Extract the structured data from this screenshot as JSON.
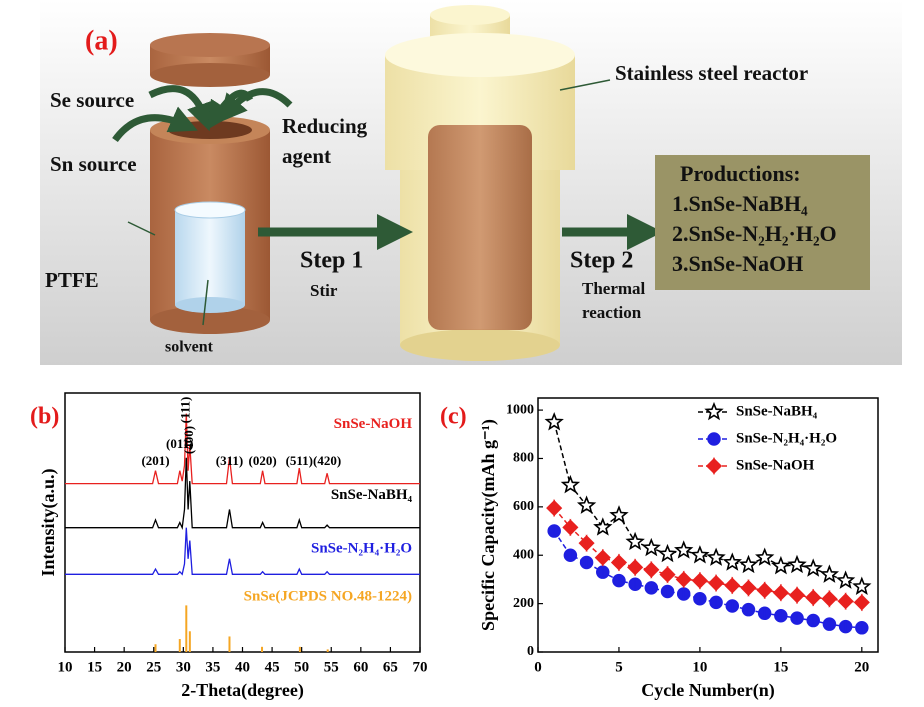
{
  "diagram": {
    "panel_label": "(a)",
    "reactor": "Stainless steel reactor",
    "se_source": "Se source",
    "reducing": [
      "Reducing",
      "agent"
    ],
    "sn_source": "Sn source",
    "ptfe": "PTFE",
    "solvent": "solvent",
    "step1": "Step 1",
    "step1_sub": "Stir",
    "step2": "Step 2",
    "step2_sub": [
      "Thermal",
      "reaction"
    ],
    "products_title": "Productions:",
    "products": [
      "1.SnSe-NaBH₄",
      "2.SnSe-N₂H₂·H₂O",
      "3.SnSe-NaOH"
    ]
  },
  "chart_data": [
    {
      "type": "line",
      "panel_label": "(b)",
      "x_label": "2-Theta(degree)",
      "y_label": "Intensity(a.u.)",
      "xlim": [
        10,
        70
      ],
      "xticks": [
        10,
        15,
        20,
        25,
        30,
        35,
        40,
        45,
        50,
        55,
        60,
        65,
        70
      ],
      "ylim": [
        0,
        100
      ],
      "x": [
        10,
        24.8,
        25.3,
        25.8,
        29.0,
        29.4,
        29.8,
        30.2,
        30.5,
        30.8,
        31.1,
        31.5,
        37.3,
        37.8,
        38.3,
        43.0,
        43.4,
        43.8,
        49.2,
        49.6,
        50.0,
        53.9,
        54.3,
        54.7,
        70
      ],
      "series": [
        {
          "name": "SnSe-NaOH",
          "color": "#e8211f",
          "values": [
            65,
            65,
            70,
            65,
            65,
            70,
            66,
            72,
            92,
            70,
            80,
            65,
            65,
            75,
            65,
            65,
            70,
            65,
            65,
            71,
            65,
            65,
            69,
            65,
            65
          ]
        },
        {
          "name": "SnSe-NaBH₄",
          "color": "#000000",
          "values": [
            48,
            48,
            51,
            48,
            48,
            50,
            48,
            55,
            75,
            55,
            66,
            48,
            48,
            55,
            48,
            48,
            50,
            48,
            48,
            51,
            48,
            48,
            49,
            48,
            48
          ]
        },
        {
          "name": "SnSe-N₂H₄·H₂O",
          "color": "#1f1fe0",
          "values": [
            30,
            30,
            32,
            30,
            30,
            31,
            30,
            34,
            48,
            36,
            43,
            30,
            30,
            36,
            30,
            30,
            31,
            30,
            30,
            32,
            30,
            30,
            31,
            30,
            30
          ]
        },
        {
          "name": "SnSe(JCPDS NO.48-1224)",
          "color": "#f5a623",
          "mode": "stick",
          "x": [
            25.3,
            29.4,
            30.5,
            31.1,
            37.8,
            43.3,
            49.7,
            54.4
          ],
          "values": [
            3,
            5,
            18,
            8,
            6,
            2,
            2,
            1
          ]
        }
      ],
      "peaks": [
        {
          "label": "(201)",
          "x": 25.3
        },
        {
          "label": "(011)",
          "x": 29.4
        },
        {
          "label": "(111)",
          "x": 30.5
        },
        {
          "label": "(400)",
          "x": 31.1
        },
        {
          "label": "(311)",
          "x": 37.8
        },
        {
          "label": "(020)",
          "x": 43.4
        },
        {
          "label": "(511)",
          "x": 49.6
        },
        {
          "label": "(420)",
          "x": 54.3
        }
      ]
    },
    {
      "type": "line",
      "panel_label": "(c)",
      "x_label": "Cycle Number(n)",
      "y_label": "Specific Capacity(mAh g⁻¹)",
      "xlim": [
        0,
        21
      ],
      "xticks": [
        0,
        5,
        10,
        15,
        20
      ],
      "ylim": [
        0,
        1050
      ],
      "yticks": [
        0,
        200,
        400,
        600,
        800,
        1000
      ],
      "legend": "upper right",
      "x": [
        1,
        2,
        3,
        4,
        5,
        6,
        7,
        8,
        9,
        10,
        11,
        12,
        13,
        14,
        15,
        16,
        17,
        18,
        19,
        20
      ],
      "series": [
        {
          "name": "SnSe-NaBH₄",
          "color": "#000000",
          "marker": "star",
          "values": [
            950,
            690,
            605,
            515,
            565,
            455,
            430,
            405,
            420,
            400,
            390,
            370,
            360,
            390,
            355,
            360,
            345,
            320,
            295,
            270
          ]
        },
        {
          "name": "SnSe-N₂H₄·H₂O",
          "color": "#1f1fe0",
          "marker": "circle",
          "values": [
            500,
            400,
            370,
            330,
            295,
            280,
            265,
            250,
            240,
            220,
            205,
            190,
            175,
            160,
            150,
            140,
            130,
            115,
            105,
            100
          ]
        },
        {
          "name": "SnSe-NaOH",
          "color": "#e8211f",
          "marker": "diamond",
          "values": [
            595,
            515,
            450,
            390,
            370,
            350,
            340,
            320,
            300,
            295,
            285,
            275,
            265,
            255,
            245,
            235,
            225,
            220,
            210,
            205
          ]
        }
      ]
    }
  ]
}
